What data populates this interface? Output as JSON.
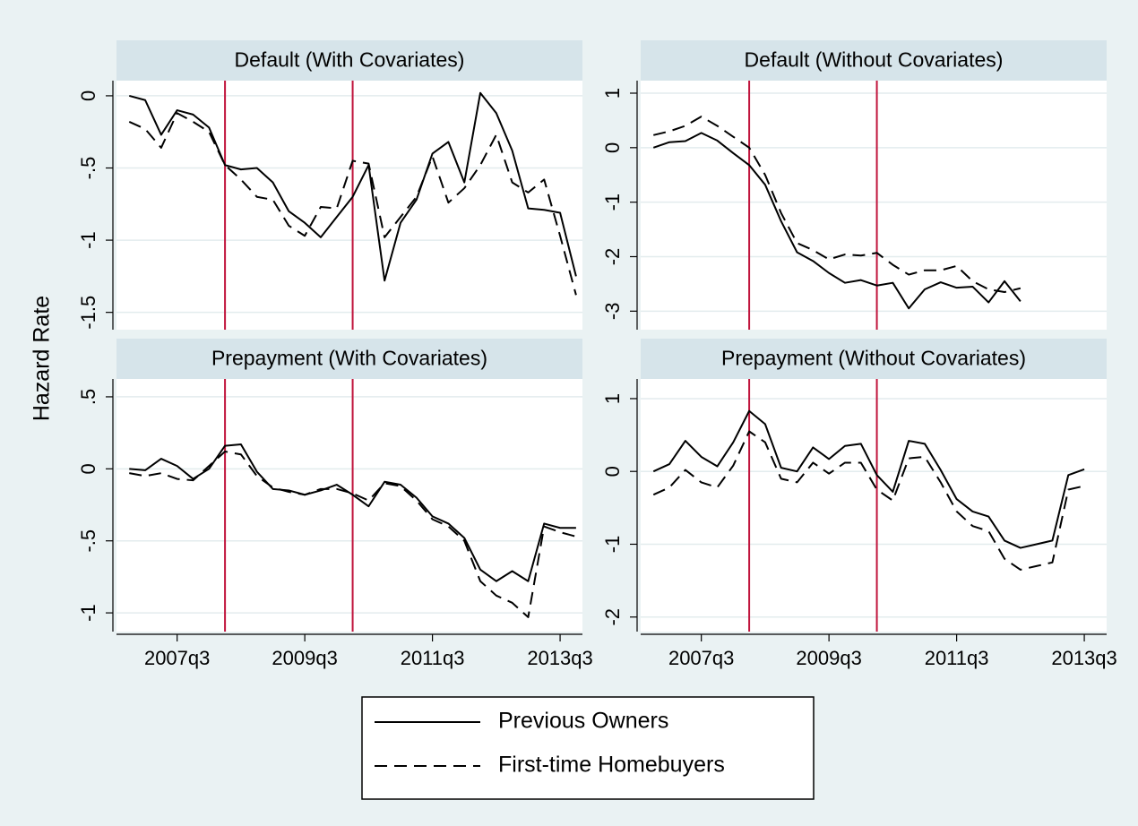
{
  "y_label": "Hazard Rate",
  "chart_data": [
    {
      "type": "line",
      "title": "Default (With Covariates)",
      "header_color": "#d6e4ea",
      "grid": true,
      "x": [
        187,
        188,
        189,
        190,
        191,
        192,
        193,
        194,
        195,
        196,
        197,
        198,
        199,
        200,
        201,
        202,
        203,
        204,
        205,
        206,
        207,
        208,
        209,
        210,
        211,
        212,
        213,
        214,
        215
      ],
      "xlim": [
        186.2,
        215.4
      ],
      "ylim": [
        -1.62,
        0.105
      ],
      "yticks": [
        0,
        {
          "value": -0.5,
          "label": "-.5"
        },
        -1,
        -1.5
      ],
      "xlines": [
        193,
        201
      ],
      "xline_color": "#c0143c",
      "series": [
        {
          "name": "Previous Owners",
          "color": "#000000",
          "line_style": "solid",
          "values": [
            0,
            -0.03,
            -0.27,
            -0.1,
            -0.13,
            -0.22,
            -0.48,
            -0.51,
            -0.5,
            -0.6,
            -0.8,
            -0.88,
            -0.98,
            -0.84,
            -0.7,
            -0.48,
            -1.28,
            -0.88,
            -0.72,
            -0.4,
            -0.32,
            -0.6,
            0.02,
            -0.12,
            -0.38,
            -0.78,
            -0.79,
            -0.81,
            -1.25
          ]
        },
        {
          "name": "First-time Homebuyers",
          "color": "#000000",
          "line_style": "dashed",
          "values": [
            -0.18,
            -0.23,
            -0.36,
            -0.12,
            -0.18,
            -0.25,
            -0.48,
            -0.58,
            -0.7,
            -0.72,
            -0.9,
            -0.97,
            -0.77,
            -0.78,
            -0.45,
            -0.47,
            -0.98,
            -0.84,
            -0.7,
            -0.42,
            -0.74,
            -0.64,
            -0.48,
            -0.27,
            -0.6,
            -0.67,
            -0.58,
            -0.97,
            -1.38
          ]
        }
      ]
    },
    {
      "type": "line",
      "title": "Default (Without Covariates)",
      "header_color": "#d6e4ea",
      "grid": true,
      "x": [
        187,
        188,
        189,
        190,
        191,
        192,
        193,
        194,
        195,
        196,
        197,
        198,
        199,
        200,
        201,
        202,
        203,
        204,
        205,
        206,
        207,
        208,
        209,
        210,
        211,
        212,
        213,
        214,
        215
      ],
      "xlim": [
        186.2,
        215.4
      ],
      "ylim": [
        -3.34,
        1.23
      ],
      "yticks": [
        1,
        0,
        -1,
        -2,
        -3
      ],
      "xlines": [
        193,
        201
      ],
      "xline_color": "#c0143c",
      "series": [
        {
          "color": "#000000",
          "line_style": "solid",
          "values": [
            0,
            0.1,
            0.12,
            0.27,
            0.13,
            -0.1,
            -0.32,
            -0.68,
            -1.35,
            -1.92,
            -2.08,
            -2.3,
            -2.48,
            -2.43,
            -2.53,
            -2.48,
            -2.95,
            -2.6,
            -2.47,
            -2.57,
            -2.55,
            -2.84,
            -2.45,
            -2.82,
            null,
            null,
            null,
            null,
            null
          ]
        },
        {
          "color": "#000000",
          "line_style": "dashed",
          "values": [
            0.23,
            0.3,
            0.4,
            0.57,
            0.4,
            0.2,
            0,
            -0.5,
            -1.2,
            -1.75,
            -1.88,
            -2.05,
            -1.96,
            -1.98,
            -1.93,
            -2.15,
            -2.33,
            -2.25,
            -2.25,
            -2.17,
            -2.45,
            -2.6,
            -2.65,
            -2.58,
            null,
            null,
            null,
            null,
            null
          ]
        }
      ]
    },
    {
      "type": "line",
      "title": "Prepayment (With Covariates)",
      "header_color": "#d6e4ea",
      "grid": true,
      "x": [
        187,
        188,
        189,
        190,
        191,
        192,
        193,
        194,
        195,
        196,
        197,
        198,
        199,
        200,
        201,
        202,
        203,
        204,
        205,
        206,
        207,
        208,
        209,
        210,
        211,
        212,
        213,
        214,
        215
      ],
      "xlim": [
        186.2,
        215.4
      ],
      "ylim": [
        -1.13,
        0.624
      ],
      "yticks": [
        {
          "value": 0.5,
          "label": ".5"
        },
        0,
        {
          "value": -0.5,
          "label": "-.5"
        },
        -1
      ],
      "xticks": [
        {
          "value": 190,
          "label": "2007q3"
        },
        {
          "value": 198,
          "label": "2009q3"
        },
        {
          "value": 206,
          "label": "2011q3"
        },
        {
          "value": 214,
          "label": "2013q3"
        }
      ],
      "xlines": [
        193,
        201
      ],
      "xline_color": "#c0143c",
      "series": [
        {
          "color": "#000000",
          "line_style": "solid",
          "values": [
            0,
            -0.01,
            0.07,
            0.02,
            -0.07,
            0,
            0.16,
            0.17,
            -0.02,
            -0.14,
            -0.15,
            -0.18,
            -0.15,
            -0.11,
            -0.18,
            -0.26,
            -0.09,
            -0.11,
            -0.2,
            -0.33,
            -0.38,
            -0.48,
            -0.7,
            -0.78,
            -0.71,
            -0.78,
            -0.38,
            -0.41,
            -0.41
          ]
        },
        {
          "color": "#000000",
          "line_style": "dashed",
          "values": [
            -0.03,
            -0.05,
            -0.03,
            -0.07,
            -0.08,
            0.02,
            0.12,
            0.1,
            -0.05,
            -0.13,
            -0.16,
            -0.18,
            -0.14,
            -0.14,
            -0.17,
            -0.22,
            -0.1,
            -0.12,
            -0.22,
            -0.35,
            -0.4,
            -0.5,
            -0.78,
            -0.88,
            -0.93,
            -1.03,
            -0.4,
            -0.44,
            -0.47
          ]
        }
      ]
    },
    {
      "type": "line",
      "title": "Prepayment (Without Covariates)",
      "header_color": "#d6e4ea",
      "grid": true,
      "x": [
        187,
        188,
        189,
        190,
        191,
        192,
        193,
        194,
        195,
        196,
        197,
        198,
        199,
        200,
        201,
        202,
        203,
        204,
        205,
        206,
        207,
        208,
        209,
        210,
        211,
        212,
        213,
        214,
        215
      ],
      "xlim": [
        186.2,
        215.4
      ],
      "ylim": [
        -2.2,
        1.27
      ],
      "yticks": [
        1,
        0,
        -1,
        -2
      ],
      "xticks": [
        {
          "value": 190,
          "label": "2007q3"
        },
        {
          "value": 198,
          "label": "2009q3"
        },
        {
          "value": 206,
          "label": "2011q3"
        },
        {
          "value": 214,
          "label": "2013q3"
        }
      ],
      "xlines": [
        193,
        201
      ],
      "xline_color": "#c0143c",
      "series": [
        {
          "color": "#000000",
          "line_style": "solid",
          "values": [
            0,
            0.1,
            0.42,
            0.2,
            0.07,
            0.4,
            0.83,
            0.65,
            0.05,
            0,
            0.33,
            0.17,
            0.35,
            0.38,
            -0.05,
            -0.28,
            0.42,
            0.38,
            0.02,
            -0.38,
            -0.55,
            -0.62,
            -0.95,
            -1.05,
            -1.0,
            -0.95,
            -0.05,
            0.03,
            null
          ]
        },
        {
          "color": "#000000",
          "line_style": "dashed",
          "values": [
            -0.32,
            -0.22,
            0.02,
            -0.15,
            -0.22,
            0.08,
            0.55,
            0.4,
            -0.1,
            -0.15,
            0.12,
            -0.03,
            0.12,
            0.12,
            -0.25,
            -0.4,
            0.18,
            0.2,
            -0.15,
            -0.55,
            -0.75,
            -0.82,
            -1.2,
            -1.35,
            -1.3,
            -1.25,
            -0.25,
            -0.2,
            null
          ]
        }
      ]
    }
  ]
}
